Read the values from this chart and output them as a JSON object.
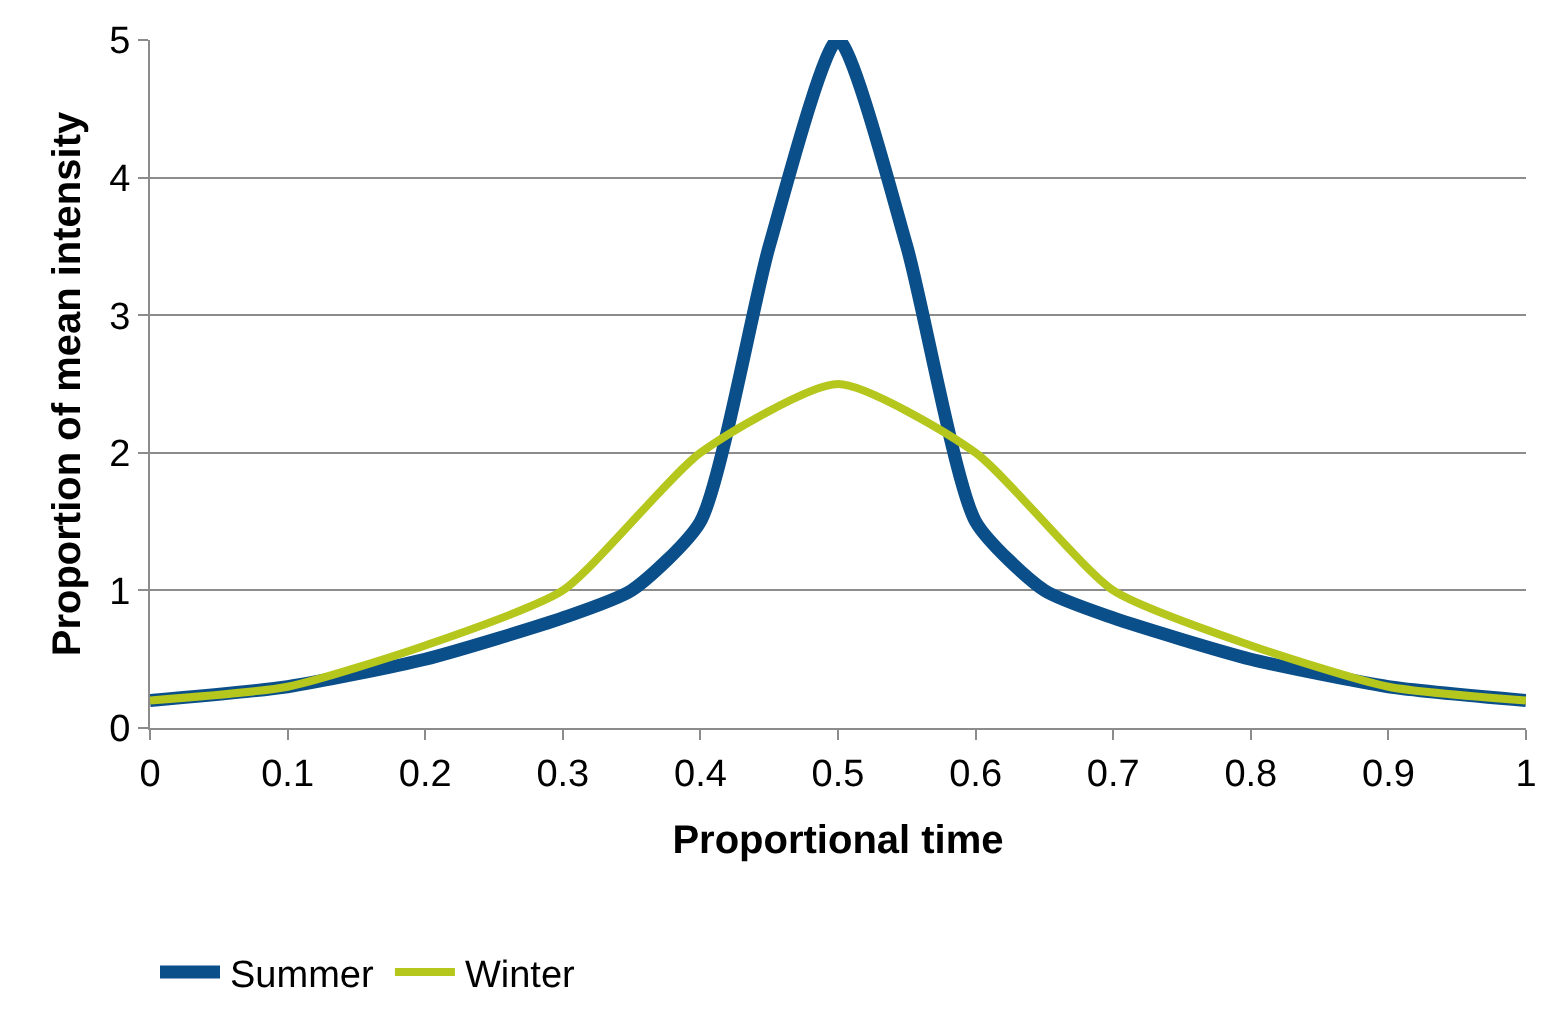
{
  "chart_data": {
    "type": "line",
    "xlabel": "Proportional time",
    "ylabel": "Proportion of mean intensity",
    "xlim": [
      0,
      1
    ],
    "xticks": [
      0,
      0.1,
      0.2,
      0.3,
      0.4,
      0.5,
      0.6,
      0.7,
      0.8,
      0.9,
      1
    ],
    "ylim": [
      0,
      5
    ],
    "yticks": [
      0,
      1,
      2,
      3,
      4,
      5
    ],
    "grid": "y",
    "legend": "bottom",
    "marker": "none",
    "line_style": "solid",
    "series": [
      {
        "name": "Summer",
        "color": "#0b4f8a",
        "x": [
          0,
          0.1,
          0.2,
          0.3,
          0.35,
          0.4,
          0.45,
          0.5,
          0.55,
          0.6,
          0.65,
          0.7,
          0.8,
          0.9,
          1
        ],
        "values": [
          0.2,
          0.3,
          0.5,
          0.8,
          1.0,
          1.5,
          3.5,
          5,
          3.5,
          1.5,
          1.0,
          0.8,
          0.5,
          0.3,
          0.2
        ]
      },
      {
        "name": "Winter",
        "color": "#b5c61c",
        "x": [
          0,
          0.1,
          0.2,
          0.3,
          0.4,
          0.5,
          0.6,
          0.7,
          0.8,
          0.9,
          1
        ],
        "values": [
          0.2,
          0.3,
          0.6,
          1.0,
          2.0,
          2.5,
          2.0,
          1.0,
          0.6,
          0.3,
          0.2
        ]
      }
    ]
  }
}
